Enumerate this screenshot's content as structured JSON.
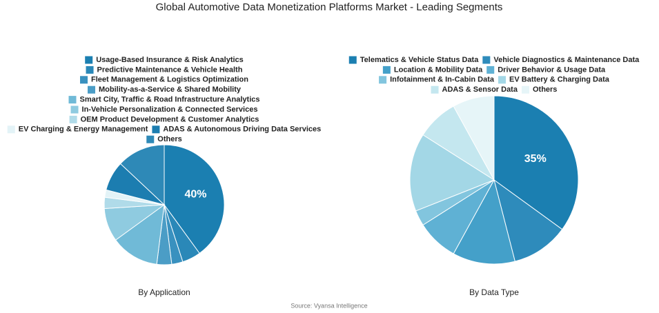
{
  "title": "Global Automotive Data Monetization Platforms Market - Leading Segments",
  "source": "Source: Vyansa Intelligence",
  "chart_data": [
    {
      "type": "pie",
      "title": "By Application",
      "categories": [
        "Usage-Based Insurance & Risk Analytics",
        "Predictive Maintenance & Vehicle Health",
        "Fleet Management & Logistics Optimization",
        "Mobility-as-a-Service & Shared Mobility",
        "Smart City, Traffic & Road Infrastructure Analytics",
        "In-Vehicle Personalization & Connected Services",
        "OEM Product Development & Customer Analytics",
        "EV Charging & Energy Management",
        "ADAS & Autonomous Driving Data Services",
        "Others"
      ],
      "values": [
        40,
        5,
        3,
        4,
        13,
        9,
        3,
        2,
        8,
        13
      ],
      "value_labels": [
        "40%",
        null,
        null,
        null,
        null,
        null,
        null,
        null,
        null,
        null
      ],
      "colors": [
        "#1b7fb1",
        "#2a88b8",
        "#3991bf",
        "#4b9dc6",
        "#70bad7",
        "#8fcbe0",
        "#b0dbe9",
        "#e3f3f7",
        "#1c7db0",
        "#2e89b7"
      ]
    },
    {
      "type": "pie",
      "title": "By Data Type",
      "categories": [
        "Telematics & Vehicle Status Data",
        "Vehicle Diagnostics & Maintenance Data",
        "Location & Mobility Data",
        "Driver Behavior & Usage Data",
        "Infotainment & In-Cabin Data",
        "EV Battery & Charging Data",
        "ADAS & Sensor Data",
        "Others"
      ],
      "values": [
        35,
        11,
        12,
        8,
        3,
        15,
        8,
        8
      ],
      "value_labels": [
        "35%",
        null,
        null,
        null,
        null,
        null,
        null,
        null
      ],
      "colors": [
        "#1b7fb1",
        "#2e8bbb",
        "#44a0c9",
        "#5fb1d4",
        "#82c5de",
        "#a3d7e6",
        "#c4e7ef",
        "#e6f5f8"
      ]
    }
  ]
}
